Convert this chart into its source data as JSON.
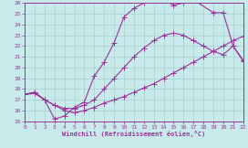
{
  "xlabel": "Windchill (Refroidissement éolien,°C)",
  "xlim": [
    0,
    22
  ],
  "ylim": [
    15,
    26
  ],
  "xticks": [
    0,
    1,
    2,
    3,
    4,
    5,
    6,
    7,
    8,
    9,
    10,
    11,
    12,
    13,
    14,
    15,
    16,
    17,
    18,
    19,
    20,
    21,
    22
  ],
  "yticks": [
    15,
    16,
    17,
    18,
    19,
    20,
    21,
    22,
    23,
    24,
    25,
    26
  ],
  "bg_color": "#c8eaea",
  "grid_color": "#a8d0d0",
  "line_color": "#993399",
  "curve1_x": [
    0,
    1,
    2,
    3,
    4,
    5,
    6,
    7,
    8,
    9,
    10,
    11,
    12,
    13,
    14,
    15,
    16,
    17,
    19,
    20,
    21,
    22
  ],
  "curve1_y": [
    17.5,
    17.7,
    17.0,
    15.2,
    15.5,
    16.3,
    16.8,
    19.2,
    20.5,
    22.3,
    24.7,
    25.5,
    26.0,
    26.3,
    26.3,
    25.8,
    26.0,
    26.3,
    25.1,
    25.1,
    22.0,
    20.6
  ],
  "curve2_x": [
    0,
    1,
    2,
    3,
    4,
    5,
    6,
    7,
    8,
    9,
    10,
    11,
    12,
    13,
    14,
    15,
    16,
    17,
    18,
    19,
    20,
    21,
    22
  ],
  "curve2_y": [
    17.5,
    17.7,
    17.0,
    16.5,
    16.2,
    16.2,
    16.5,
    17.0,
    18.0,
    19.0,
    20.0,
    21.0,
    21.8,
    22.5,
    23.0,
    23.2,
    23.0,
    22.5,
    22.0,
    21.5,
    21.2,
    22.0,
    20.7
  ],
  "curve3_x": [
    0,
    1,
    2,
    3,
    4,
    5,
    6,
    7,
    8,
    9,
    10,
    11,
    12,
    13,
    14,
    15,
    16,
    17,
    18,
    19,
    20,
    21,
    22
  ],
  "curve3_y": [
    17.5,
    17.6,
    17.0,
    16.5,
    16.0,
    15.8,
    16.0,
    16.3,
    16.7,
    17.0,
    17.3,
    17.7,
    18.1,
    18.5,
    19.0,
    19.5,
    20.0,
    20.5,
    21.0,
    21.5,
    22.0,
    22.5,
    22.9
  ]
}
